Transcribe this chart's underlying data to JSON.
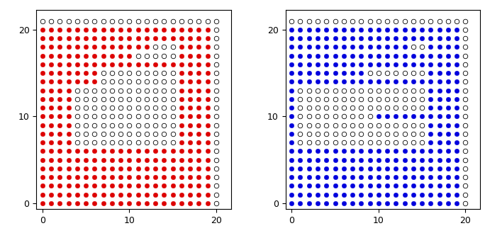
{
  "red_color": "#dd0000",
  "blue_color": "#0000dd",
  "dot_size": 22,
  "open_size": 22,
  "xticks": [
    0,
    10,
    20
  ],
  "yticks": [
    0,
    10,
    20
  ],
  "red_rows": {
    "0": [
      0,
      1,
      2,
      3,
      4,
      5,
      6,
      7,
      8,
      9,
      10,
      11,
      12,
      13,
      14,
      15,
      16,
      17,
      18,
      19
    ],
    "1": [
      0,
      1,
      2,
      3,
      4,
      5,
      6,
      7,
      8,
      9,
      10,
      11,
      12,
      13,
      14,
      15,
      16,
      17,
      18,
      19
    ],
    "2": [
      0,
      1,
      2,
      3,
      4,
      5,
      6,
      7,
      8,
      9,
      10,
      11,
      12,
      13,
      14,
      15,
      16,
      17,
      18,
      19
    ],
    "3": [
      0,
      1,
      2,
      3,
      4,
      5,
      6,
      7,
      8,
      9,
      10,
      11,
      12,
      13,
      14,
      15,
      16,
      17,
      18,
      19
    ],
    "4": [
      0,
      1,
      2,
      3,
      4,
      5,
      6,
      7,
      8,
      9,
      10,
      11,
      12,
      13,
      14,
      15,
      16,
      17,
      18,
      19
    ],
    "5": [
      0,
      1,
      2,
      3,
      4,
      5,
      6,
      7,
      8,
      9,
      10,
      11,
      12,
      13,
      14,
      15,
      16,
      17,
      18,
      19
    ],
    "6": [
      0,
      1,
      2,
      3,
      4,
      5,
      6,
      7,
      8,
      9,
      10,
      11,
      12,
      13,
      14,
      15,
      16,
      17,
      18,
      19
    ],
    "7": [
      0,
      1,
      2,
      3,
      16,
      17,
      18,
      19
    ],
    "8": [
      0,
      1,
      2,
      3,
      16,
      17,
      18,
      19
    ],
    "9": [
      0,
      1,
      2,
      3,
      16,
      17,
      18,
      19
    ],
    "10": [
      0,
      1,
      2,
      3,
      16,
      17,
      18,
      19
    ],
    "11": [
      0,
      1,
      2,
      3,
      16,
      17,
      18,
      19
    ],
    "12": [
      0,
      1,
      2,
      3,
      16,
      17,
      18,
      19
    ],
    "13": [
      0,
      1,
      2,
      3,
      16,
      17,
      18,
      19
    ],
    "14": [
      0,
      1,
      2,
      3,
      4,
      5,
      6,
      16,
      17,
      18,
      19
    ],
    "15": [
      0,
      1,
      2,
      3,
      4,
      5,
      6,
      16,
      17,
      18,
      19
    ],
    "16": [
      0,
      1,
      2,
      3,
      4,
      5,
      6,
      7,
      8,
      9,
      10,
      11,
      12,
      13,
      14,
      15,
      16,
      17,
      18,
      19
    ],
    "17": [
      0,
      1,
      2,
      3,
      4,
      5,
      6,
      7,
      8,
      9,
      10,
      16,
      17,
      18,
      19
    ],
    "18": [
      0,
      1,
      2,
      3,
      4,
      5,
      6,
      7,
      8,
      9,
      10,
      11,
      12,
      16,
      17,
      18,
      19
    ],
    "19": [
      0,
      1,
      2,
      3,
      4,
      5,
      6,
      7,
      8,
      9,
      10,
      11,
      12,
      13,
      14,
      15,
      16,
      17,
      18,
      19
    ],
    "20": [
      0,
      1,
      2,
      3,
      4,
      5,
      6,
      7,
      8,
      9,
      10,
      11,
      12,
      13,
      14,
      15,
      16,
      17,
      18,
      19
    ]
  },
  "blue_rows": {
    "0": [
      0,
      1,
      2,
      3,
      4,
      5,
      6,
      7,
      8,
      9,
      10,
      11,
      12,
      13,
      14,
      15,
      16,
      17,
      18,
      19
    ],
    "1": [
      0,
      1,
      2,
      3,
      4,
      5,
      6,
      7,
      8,
      9,
      10,
      11,
      12,
      13,
      14,
      15,
      16,
      17,
      18,
      19
    ],
    "2": [
      0,
      1,
      2,
      3,
      4,
      5,
      6,
      7,
      8,
      9,
      10,
      11,
      12,
      13,
      14,
      15,
      16,
      17,
      18,
      19
    ],
    "3": [
      0,
      1,
      2,
      3,
      4,
      5,
      6,
      7,
      8,
      9,
      10,
      11,
      12,
      13,
      14,
      15,
      16,
      17,
      18,
      19
    ],
    "4": [
      0,
      1,
      2,
      3,
      4,
      5,
      6,
      7,
      8,
      9,
      10,
      11,
      12,
      13,
      14,
      15,
      16,
      17,
      18,
      19
    ],
    "5": [
      0,
      1,
      2,
      3,
      4,
      5,
      6,
      7,
      8,
      9,
      10,
      11,
      12,
      13,
      14,
      15,
      16,
      17,
      18,
      19
    ],
    "6": [
      0,
      1,
      2,
      3,
      4,
      5,
      6,
      7,
      8,
      9,
      10,
      11,
      12,
      13,
      14,
      15,
      16,
      17,
      18,
      19
    ],
    "7": [
      0,
      16,
      17,
      18,
      19
    ],
    "8": [
      0,
      16,
      17,
      18,
      19
    ],
    "9": [
      0,
      16,
      17,
      18,
      19
    ],
    "10": [
      0,
      10,
      11,
      12,
      13,
      14,
      15,
      16,
      17,
      18,
      19
    ],
    "11": [
      0,
      16,
      17,
      18,
      19
    ],
    "12": [
      0,
      16,
      17,
      18,
      19
    ],
    "13": [
      0,
      16,
      17,
      18,
      19
    ],
    "14": [
      0,
      1,
      2,
      3,
      4,
      5,
      6,
      7,
      8,
      9,
      10,
      11,
      12,
      13,
      14,
      15,
      16,
      17,
      18,
      19
    ],
    "15": [
      0,
      1,
      2,
      3,
      4,
      5,
      6,
      7,
      8,
      16,
      17,
      18,
      19
    ],
    "16": [
      0,
      1,
      2,
      3,
      4,
      5,
      6,
      7,
      8,
      9,
      10,
      11,
      12,
      13,
      14,
      15,
      16,
      17,
      18,
      19
    ],
    "17": [
      0,
      1,
      2,
      3,
      4,
      5,
      6,
      7,
      8,
      9,
      10,
      11,
      12,
      13,
      14,
      15,
      16,
      17,
      18,
      19
    ],
    "18": [
      0,
      1,
      2,
      3,
      4,
      5,
      6,
      7,
      8,
      9,
      10,
      11,
      12,
      13,
      16,
      17,
      18,
      19
    ],
    "19": [
      0,
      1,
      2,
      3,
      4,
      5,
      6,
      7,
      8,
      9,
      10,
      11,
      12,
      13,
      14,
      15,
      16,
      17,
      18,
      19
    ],
    "20": [
      0,
      1,
      2,
      3,
      4,
      5,
      6,
      7,
      8,
      9,
      10,
      11,
      12,
      13,
      14,
      15,
      16,
      17,
      18,
      19
    ]
  }
}
